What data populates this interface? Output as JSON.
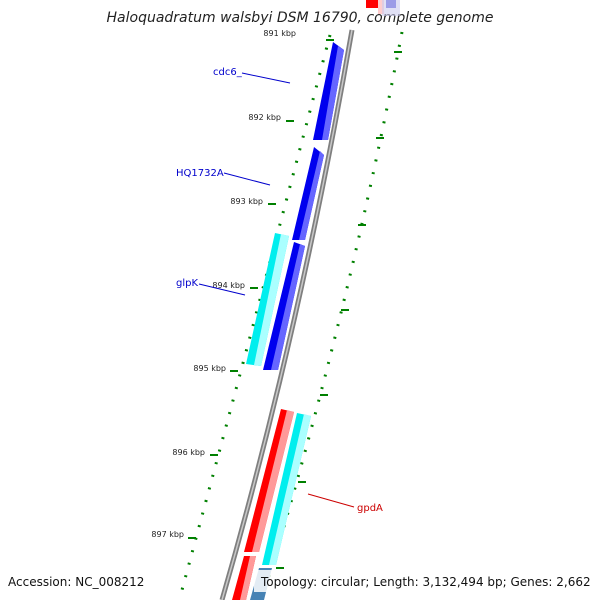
{
  "title": "Haloquadratum walsbyi DSM 16790, complete genome",
  "accession": "Accession: NC_008212",
  "topology": "Topology: circular; Length: 3,132,494 bp; Genes: 2,662",
  "ticks": [
    "891 kbp",
    "892 kbp",
    "893 kbp",
    "894 kbp",
    "895 kbp",
    "896 kbp",
    "897 kbp"
  ],
  "genes": [
    {
      "label": "cdc6_",
      "color": "#0000cc"
    },
    {
      "label": "HQ1732A",
      "color": "#0000cc"
    },
    {
      "label": "glpK",
      "color": "#0000cc"
    },
    {
      "label": "gpdA",
      "color": "#cc0000"
    }
  ],
  "colors": {
    "backbone": "#808080",
    "forward_gene": "#0000ee",
    "cyan_gene": "#00eeee",
    "red_gene": "#ff0000",
    "tick": "#008000",
    "steelblue_gene": "#4682b4"
  }
}
